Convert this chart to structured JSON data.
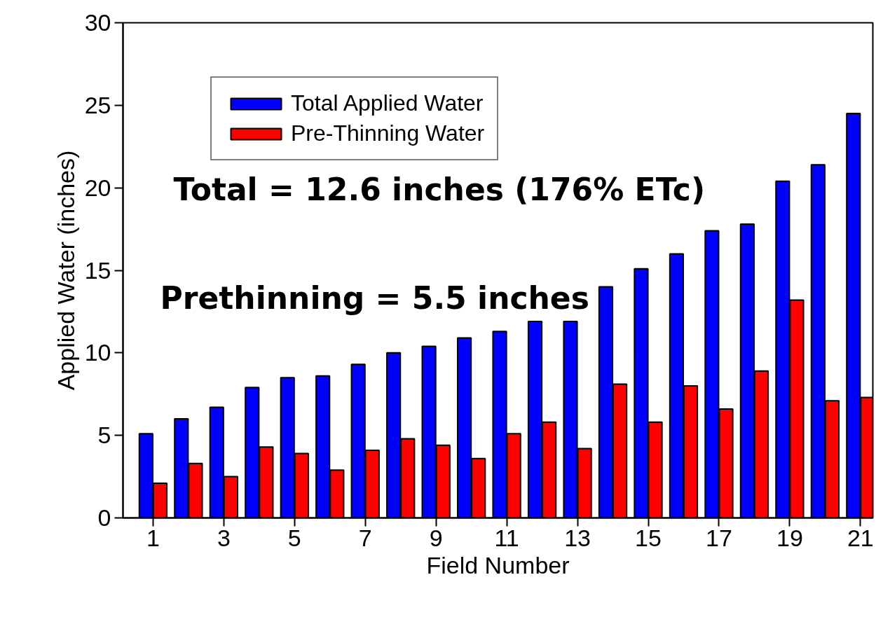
{
  "chart_data": {
    "type": "bar",
    "xlabel": "Field Number",
    "ylabel": "Applied Water (inches)",
    "x": [
      1,
      2,
      3,
      4,
      5,
      6,
      7,
      8,
      9,
      10,
      11,
      12,
      13,
      14,
      15,
      16,
      17,
      18,
      19,
      20,
      21
    ],
    "series": [
      {
        "name": "Total Applied Water",
        "color": "#0000ff",
        "values": [
          5.1,
          6.0,
          6.7,
          7.9,
          8.5,
          8.6,
          9.3,
          10.0,
          10.4,
          10.9,
          11.3,
          11.9,
          11.9,
          14.0,
          15.1,
          16.0,
          17.4,
          17.8,
          20.4,
          21.4,
          24.5
        ]
      },
      {
        "name": "Pre-Thinning Water",
        "color": "#ff0000",
        "values": [
          2.1,
          3.3,
          2.5,
          4.3,
          3.9,
          2.9,
          4.1,
          4.8,
          4.4,
          3.6,
          5.1,
          5.8,
          4.2,
          8.1,
          5.8,
          8.0,
          6.6,
          8.9,
          13.2,
          7.1,
          7.3
        ]
      }
    ],
    "xlim": [
      0.15,
      21.35
    ],
    "xticks": [
      1,
      3,
      5,
      7,
      9,
      11,
      13,
      15,
      17,
      19,
      21
    ],
    "ylim": [
      0,
      30
    ],
    "yticks": [
      0,
      5,
      10,
      15,
      20,
      25,
      30
    ],
    "annotations": [
      "Total = 12.6 inches (176% ETc)",
      "Prethinning = 5.5 inches"
    ],
    "grid": false,
    "legend": "top left"
  }
}
